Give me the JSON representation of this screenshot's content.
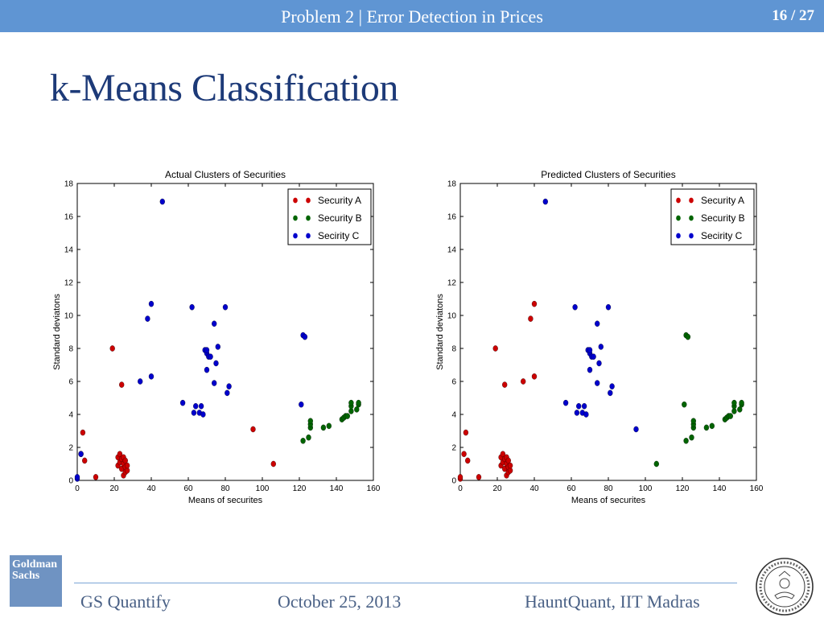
{
  "header": {
    "title": "Problem 2 | Error Detection in Prices",
    "page": "16 / 27"
  },
  "slide": {
    "title": "k-Means Classification"
  },
  "footer": {
    "left": "GS Quantify",
    "center": "October 25, 2013",
    "right": "HauntQuant, IIT Madras",
    "logo_text": "Goldman Sachs"
  },
  "colors": {
    "accent": "#5f95d3",
    "title": "#1d3a78",
    "security_a": "#cc0000",
    "security_b": "#006400",
    "security_c": "#0000cc"
  },
  "chart_data": [
    {
      "type": "scatter",
      "title": "Actual Clusters of Securities",
      "xlabel": "Means of securites",
      "ylabel": "Standard deviatons",
      "xlim": [
        0,
        160
      ],
      "ylim": [
        0,
        18
      ],
      "xticks": [
        "0",
        "20",
        "40",
        "60",
        "80",
        "100",
        "120",
        "140",
        "160"
      ],
      "yticks": [
        "0",
        "2",
        "4",
        "6",
        "8",
        "10",
        "12",
        "14",
        "16",
        "18"
      ],
      "legend_position": "top-right",
      "series": [
        {
          "name": "Security A",
          "color": "#cc0000",
          "points": [
            [
              2,
              1.6
            ],
            [
              3,
              2.9
            ],
            [
              4,
              1.2
            ],
            [
              10,
              0.2
            ],
            [
              19,
              8.0
            ],
            [
              22,
              1.4
            ],
            [
              22,
              0.9
            ],
            [
              23,
              1.6
            ],
            [
              23,
              1.1
            ],
            [
              24,
              0.7
            ],
            [
              24,
              1.3
            ],
            [
              24,
              5.8
            ],
            [
              25,
              0.3
            ],
            [
              25,
              1.0
            ],
            [
              25,
              1.4
            ],
            [
              26,
              0.5
            ],
            [
              26,
              0.8
            ],
            [
              26,
              1.2
            ],
            [
              27,
              0.6
            ],
            [
              27,
              0.9
            ],
            [
              95,
              3.1
            ],
            [
              106,
              1.0
            ]
          ]
        },
        {
          "name": "Security B",
          "color": "#006400",
          "points": [
            [
              122,
              2.4
            ],
            [
              125,
              2.6
            ],
            [
              126,
              3.2
            ],
            [
              126,
              3.4
            ],
            [
              126,
              3.6
            ],
            [
              133,
              3.2
            ],
            [
              136,
              3.3
            ],
            [
              143,
              3.7
            ],
            [
              144,
              3.8
            ],
            [
              145,
              3.9
            ],
            [
              146,
              3.9
            ],
            [
              148,
              4.2
            ],
            [
              148,
              4.5
            ],
            [
              148,
              4.7
            ],
            [
              151,
              4.3
            ],
            [
              152,
              4.6
            ],
            [
              152,
              4.7
            ]
          ]
        },
        {
          "name": "Secirity C",
          "color": "#0000cc",
          "points": [
            [
              0,
              0.1
            ],
            [
              0,
              0.2
            ],
            [
              2,
              1.6
            ],
            [
              34,
              6.0
            ],
            [
              38,
              9.8
            ],
            [
              40,
              10.7
            ],
            [
              40,
              6.3
            ],
            [
              46,
              16.9
            ],
            [
              57,
              4.7
            ],
            [
              62,
              10.5
            ],
            [
              63,
              4.1
            ],
            [
              64,
              4.5
            ],
            [
              66,
              4.1
            ],
            [
              67,
              4.5
            ],
            [
              68,
              4.0
            ],
            [
              69,
              7.9
            ],
            [
              70,
              6.7
            ],
            [
              70,
              7.7
            ],
            [
              70,
              7.9
            ],
            [
              71,
              7.5
            ],
            [
              72,
              7.5
            ],
            [
              74,
              9.5
            ],
            [
              74,
              5.9
            ],
            [
              75,
              7.1
            ],
            [
              76,
              8.1
            ],
            [
              80,
              10.5
            ],
            [
              81,
              5.3
            ],
            [
              82,
              5.7
            ],
            [
              121,
              4.6
            ],
            [
              122,
              8.8
            ],
            [
              123,
              8.7
            ]
          ]
        }
      ]
    },
    {
      "type": "scatter",
      "title": "Predicted Clusters of Securities",
      "xlabel": "Means of securites",
      "ylabel": "Standard deviatons",
      "xlim": [
        0,
        160
      ],
      "ylim": [
        0,
        18
      ],
      "xticks": [
        "0",
        "20",
        "40",
        "60",
        "80",
        "100",
        "120",
        "140",
        "160"
      ],
      "yticks": [
        "0",
        "2",
        "4",
        "6",
        "8",
        "10",
        "12",
        "14",
        "16",
        "18"
      ],
      "legend_position": "top-right",
      "series": [
        {
          "name": "Security A",
          "color": "#cc0000",
          "points": [
            [
              0,
              0.1
            ],
            [
              0,
              0.2
            ],
            [
              2,
              1.6
            ],
            [
              3,
              2.9
            ],
            [
              4,
              1.2
            ],
            [
              10,
              0.2
            ],
            [
              19,
              8.0
            ],
            [
              22,
              1.4
            ],
            [
              22,
              0.9
            ],
            [
              23,
              1.6
            ],
            [
              23,
              1.1
            ],
            [
              24,
              0.7
            ],
            [
              24,
              1.3
            ],
            [
              24,
              5.8
            ],
            [
              25,
              0.3
            ],
            [
              25,
              1.0
            ],
            [
              25,
              1.4
            ],
            [
              26,
              0.5
            ],
            [
              26,
              0.8
            ],
            [
              26,
              1.2
            ],
            [
              27,
              0.6
            ],
            [
              27,
              0.9
            ],
            [
              34,
              6.0
            ],
            [
              38,
              9.8
            ],
            [
              40,
              10.7
            ],
            [
              40,
              6.3
            ]
          ]
        },
        {
          "name": "Security B",
          "color": "#006400",
          "points": [
            [
              106,
              1.0
            ],
            [
              121,
              4.6
            ],
            [
              122,
              2.4
            ],
            [
              122,
              8.8
            ],
            [
              123,
              8.7
            ],
            [
              125,
              2.6
            ],
            [
              126,
              3.2
            ],
            [
              126,
              3.4
            ],
            [
              126,
              3.6
            ],
            [
              133,
              3.2
            ],
            [
              136,
              3.3
            ],
            [
              143,
              3.7
            ],
            [
              144,
              3.8
            ],
            [
              145,
              3.9
            ],
            [
              146,
              3.9
            ],
            [
              148,
              4.2
            ],
            [
              148,
              4.5
            ],
            [
              148,
              4.7
            ],
            [
              151,
              4.3
            ],
            [
              152,
              4.6
            ],
            [
              152,
              4.7
            ]
          ]
        },
        {
          "name": "Secirity C",
          "color": "#0000cc",
          "points": [
            [
              46,
              16.9
            ],
            [
              57,
              4.7
            ],
            [
              62,
              10.5
            ],
            [
              63,
              4.1
            ],
            [
              64,
              4.5
            ],
            [
              66,
              4.1
            ],
            [
              67,
              4.5
            ],
            [
              68,
              4.0
            ],
            [
              69,
              7.9
            ],
            [
              70,
              6.7
            ],
            [
              70,
              7.7
            ],
            [
              70,
              7.9
            ],
            [
              71,
              7.5
            ],
            [
              72,
              7.5
            ],
            [
              74,
              9.5
            ],
            [
              74,
              5.9
            ],
            [
              75,
              7.1
            ],
            [
              76,
              8.1
            ],
            [
              80,
              10.5
            ],
            [
              81,
              5.3
            ],
            [
              82,
              5.7
            ],
            [
              95,
              3.1
            ]
          ]
        }
      ]
    }
  ]
}
